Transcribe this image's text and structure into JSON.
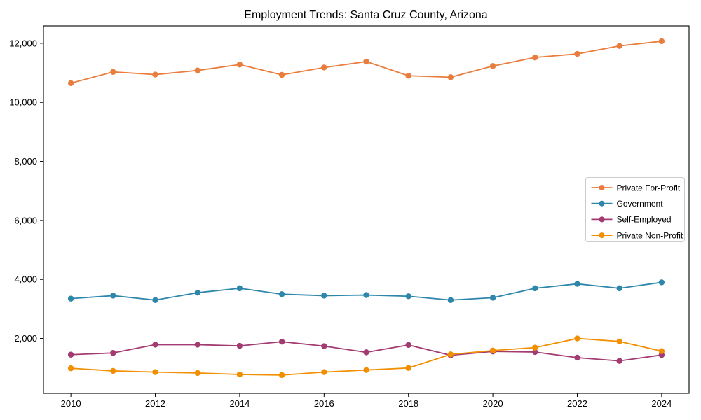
{
  "figure": {
    "background": "#ffffff",
    "axis_color": "#000000",
    "legend_border_color": "#cccccc"
  },
  "chart_data": {
    "type": "line",
    "title": "Employment Trends: Santa Cruz County, Arizona",
    "xlabel": "",
    "ylabel": "",
    "x": [
      2010,
      2011,
      2012,
      2013,
      2014,
      2015,
      2016,
      2017,
      2018,
      2019,
      2020,
      2021,
      2022,
      2023,
      2024
    ],
    "series": [
      {
        "name": "Private For-Profit",
        "color": "#e87d3e",
        "values": [
          10650,
          11030,
          10940,
          11080,
          11280,
          10930,
          11180,
          11380,
          10900,
          10850,
          11230,
          11520,
          11640,
          11910,
          12070
        ]
      },
      {
        "name": "Government",
        "color": "#2e86ab",
        "values": [
          3350,
          3450,
          3300,
          3550,
          3700,
          3500,
          3450,
          3470,
          3430,
          3300,
          3380,
          3700,
          3850,
          3700,
          3900
        ]
      },
      {
        "name": "Self-Employed",
        "color": "#a23b72",
        "values": [
          1450,
          1510,
          1790,
          1790,
          1750,
          1890,
          1740,
          1530,
          1780,
          1430,
          1560,
          1540,
          1350,
          1240,
          1440
        ]
      },
      {
        "name": "Private Non-Profit",
        "color": "#f18f01",
        "values": [
          990,
          900,
          860,
          830,
          780,
          760,
          860,
          930,
          1000,
          1460,
          1590,
          1690,
          2000,
          1900,
          1570
        ]
      }
    ],
    "xtick_values": [
      2010,
      2012,
      2014,
      2016,
      2018,
      2020,
      2022,
      2024
    ],
    "xtick_labels": [
      "2010",
      "2012",
      "2014",
      "2016",
      "2018",
      "2020",
      "2022",
      "2024"
    ],
    "ytick_values": [
      2000,
      4000,
      6000,
      8000,
      10000,
      12000
    ],
    "ytick_labels": [
      "2,000",
      "4,000",
      "6,000",
      "8,000",
      "10,000",
      "12,000"
    ],
    "xlim": [
      2009.35,
      2024.65
    ],
    "ylim": [
      140,
      12590
    ],
    "grid": "off",
    "marker": "circle",
    "legend": {
      "position": "center-right",
      "labels": [
        "Private For-Profit",
        "Government",
        "Self-Employed",
        "Private Non-Profit"
      ]
    }
  }
}
